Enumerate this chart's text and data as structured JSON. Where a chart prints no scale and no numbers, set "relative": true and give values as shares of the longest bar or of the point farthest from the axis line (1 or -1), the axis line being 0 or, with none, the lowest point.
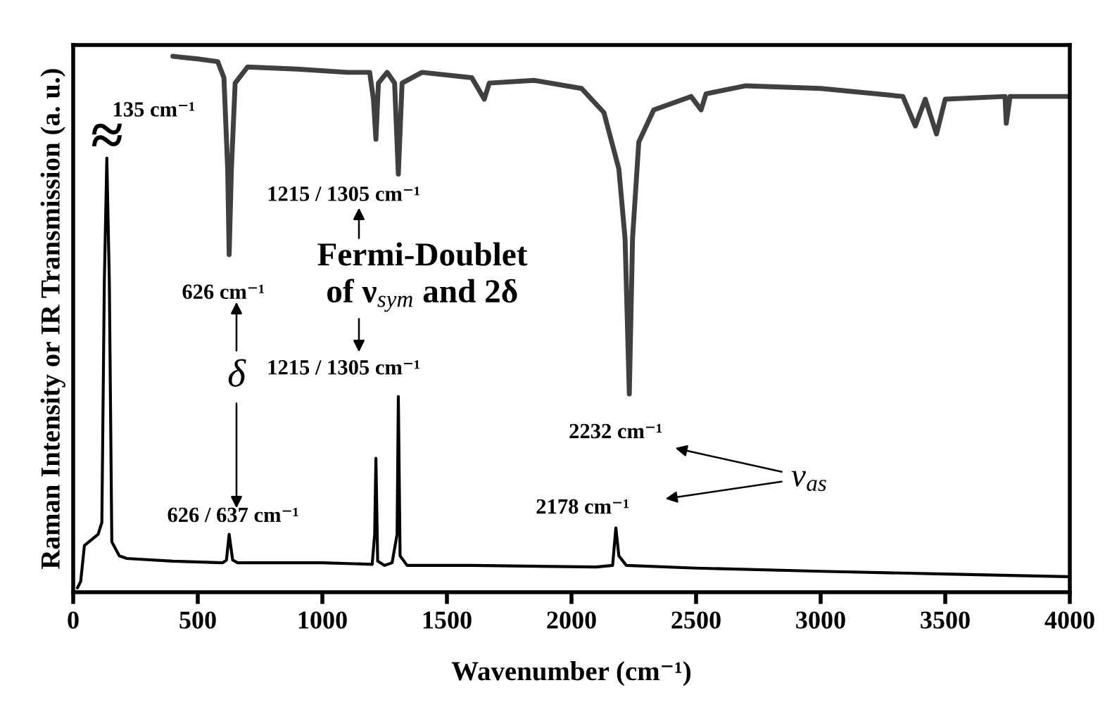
{
  "chart_data": {
    "type": "line",
    "relative": true,
    "xlabel": "Wavenumber (cm⁻¹)",
    "ylabel": "Raman Intensity or IR Transmission (a. u.)",
    "xlim": [
      0,
      4000
    ],
    "xticks": [
      0,
      500,
      1000,
      1500,
      2000,
      2500,
      3000,
      3500,
      4000
    ],
    "series": [
      {
        "color": "#404040",
        "x": [
          400,
          500,
          580,
          605,
          620,
          626,
          635,
          650,
          700,
          900,
          1100,
          1190,
          1205,
          1215,
          1225,
          1260,
          1290,
          1305,
          1320,
          1400,
          1600,
          1650,
          1670,
          1850,
          2040,
          2130,
          2190,
          2215,
          2232,
          2245,
          2270,
          2330,
          2480,
          2520,
          2540,
          2700,
          3000,
          3330,
          3380,
          3420,
          3465,
          3500,
          3740,
          3745,
          3760,
          3990
        ],
        "values": [
          1.0,
          0.995,
          0.99,
          0.96,
          0.79,
          0.63,
          0.79,
          0.95,
          0.98,
          0.976,
          0.97,
          0.97,
          0.92,
          0.845,
          0.95,
          0.97,
          0.95,
          0.78,
          0.95,
          0.97,
          0.96,
          0.92,
          0.95,
          0.955,
          0.94,
          0.895,
          0.79,
          0.66,
          0.37,
          0.66,
          0.84,
          0.9,
          0.925,
          0.9,
          0.93,
          0.945,
          0.94,
          0.925,
          0.87,
          0.92,
          0.855,
          0.92,
          0.925,
          0.875,
          0.925,
          0.925
        ]
      },
      {
        "color": "#000000",
        "x": [
          17,
          30,
          45,
          100,
          115,
          125,
          135,
          145,
          155,
          185,
          215,
          400,
          600,
          615,
          626,
          640,
          660,
          1000,
          1200,
          1210,
          1215,
          1222,
          1250,
          1280,
          1300,
          1305,
          1312,
          1340,
          1600,
          2100,
          2165,
          2178,
          2190,
          2220,
          2500,
          3000,
          3500,
          3990
        ],
        "values": [
          0.008,
          0.02,
          0.087,
          0.108,
          0.13,
          0.58,
          0.81,
          0.58,
          0.094,
          0.068,
          0.063,
          0.058,
          0.055,
          0.06,
          0.108,
          0.06,
          0.055,
          0.055,
          0.052,
          0.108,
          0.25,
          0.058,
          0.05,
          0.055,
          0.108,
          0.365,
          0.068,
          0.05,
          0.05,
          0.047,
          0.05,
          0.12,
          0.068,
          0.05,
          0.045,
          0.039,
          0.034,
          0.029
        ]
      }
    ],
    "annotations": [
      {
        "text": "135 cm⁻¹",
        "x": 135,
        "y": 0.81
      },
      {
        "text": "626 cm⁻¹",
        "x": 626,
        "y": 0.63
      },
      {
        "text": "1215 / 1305 cm⁻¹",
        "x": 1305,
        "y": 0.78
      },
      {
        "text": "626 / 637 cm⁻¹",
        "x": 626,
        "y": 0.108
      },
      {
        "text": "1215 / 1305 cm⁻¹",
        "x": 1305,
        "y": 0.365
      },
      {
        "text": "2232 cm⁻¹",
        "x": 2232,
        "y": 0.37
      },
      {
        "text": "2178 cm⁻¹",
        "x": 2178,
        "y": 0.12
      },
      "Fermi-Doublet",
      "of ν$_{sym}$ and 2δ",
      "δ",
      "ν$_{as}$",
      "≈"
    ]
  }
}
